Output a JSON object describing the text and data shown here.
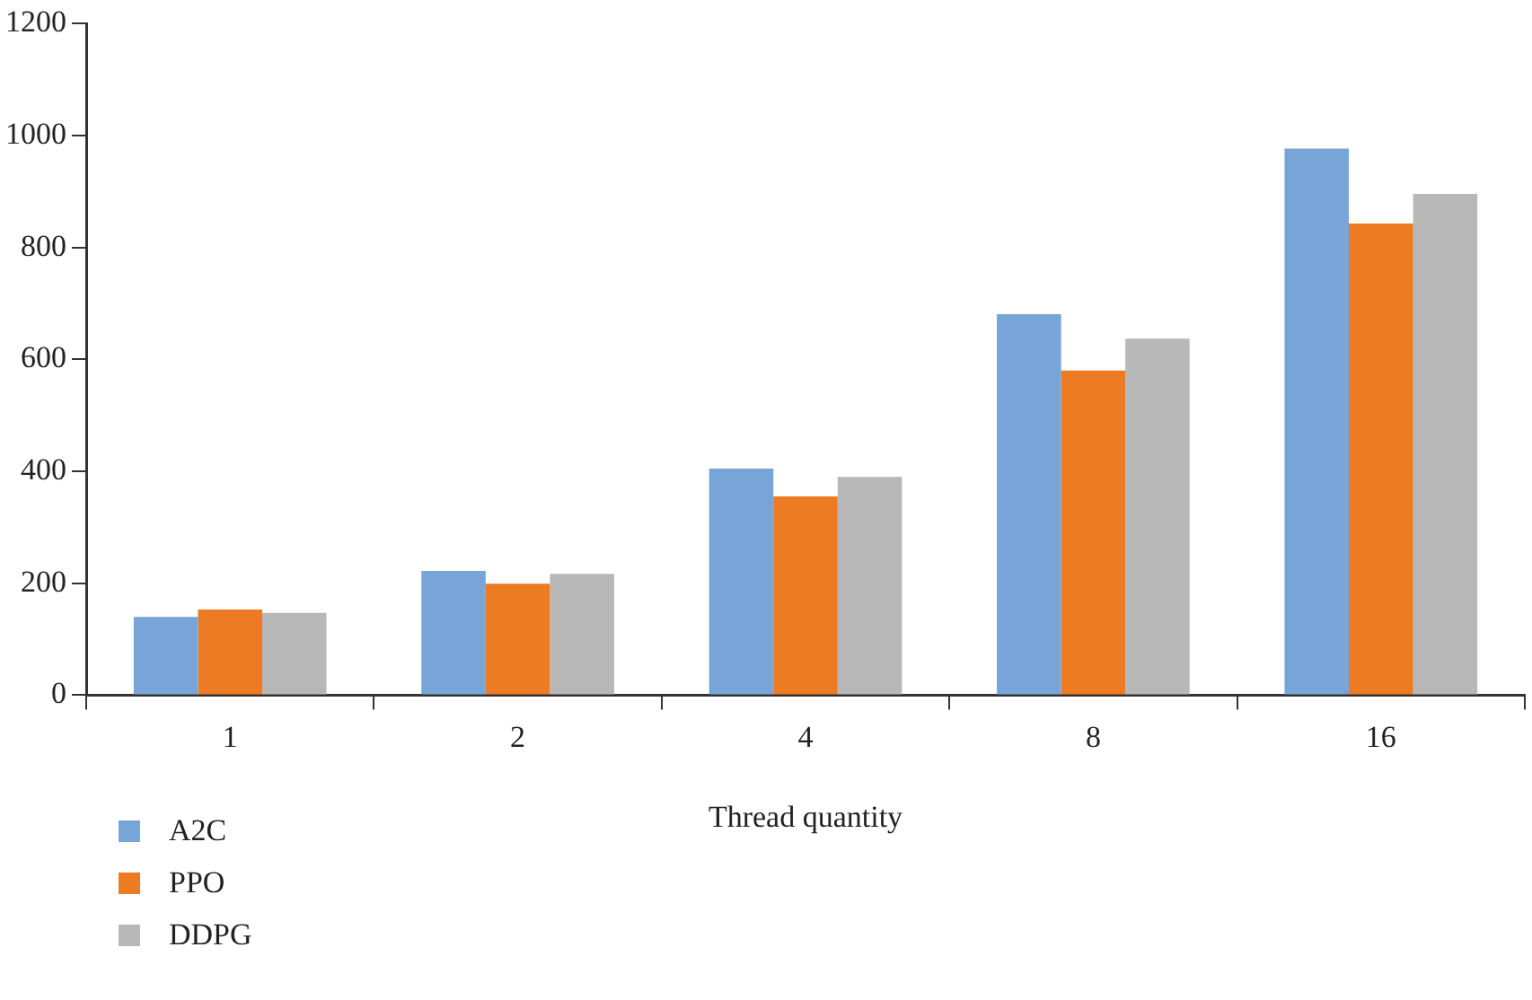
{
  "chart_data": {
    "type": "bar",
    "xlabel": "Thread quantity",
    "categories": [
      "1",
      "2",
      "4",
      "8",
      "16"
    ],
    "series": [
      {
        "name": "A2C",
        "color": "#77a5d7",
        "values": [
          140,
          222,
          405,
          681,
          977
        ]
      },
      {
        "name": "PPO",
        "color": "#ec7b23",
        "values": [
          153,
          199,
          355,
          580,
          843
        ]
      },
      {
        "name": "DDPG",
        "color": "#b8b8b8",
        "values": [
          147,
          217,
          390,
          637,
          896
        ]
      }
    ],
    "ylim": [
      0,
      1200
    ],
    "yticks": [
      0,
      200,
      400,
      600,
      800,
      1000,
      1200
    ],
    "grid": false,
    "legend": "bottom left"
  }
}
